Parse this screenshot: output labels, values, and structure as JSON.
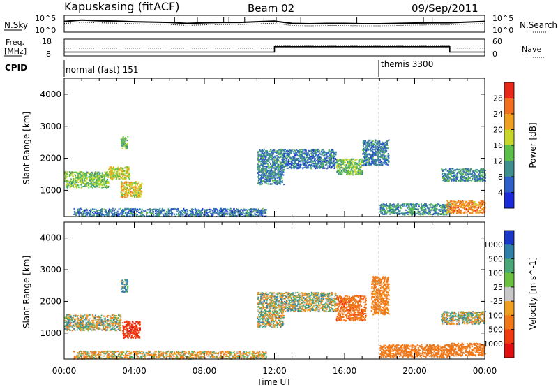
{
  "header": {
    "station": "Kapuskasing (fitACF)",
    "beam": "Beam 02",
    "date": "09/Sep/2011"
  },
  "noise_panel": {
    "left_label": "N.Sky",
    "right_label": "N.Search",
    "left_ticks": [
      "10^5",
      "10^0"
    ],
    "right_ticks": [
      "10^5",
      "10^0"
    ]
  },
  "freq_panel": {
    "left_label_line1": "Freq.",
    "left_label_line2": "[MHz]",
    "left_ticks": [
      "18",
      "8"
    ],
    "right_label": "Nave",
    "right_ticks": [
      "60",
      "0"
    ]
  },
  "cpid": {
    "label": "CPID",
    "segments": [
      {
        "name": "normal (fast) 151",
        "start_hour": 0
      },
      {
        "name": "themis 3300",
        "start_hour": 18
      }
    ]
  },
  "axes": {
    "xlabel": "Time UT",
    "x_ticks": [
      "00:00",
      "04:00",
      "08:00",
      "12:00",
      "16:00",
      "20:00",
      "00:00"
    ],
    "ylabel": "Slant Range [km]",
    "y_ticks": [
      "1000",
      "2000",
      "3000",
      "4000"
    ]
  },
  "power_colorbar": {
    "label": "Power [dB]",
    "ticks": [
      "4",
      "8",
      "12",
      "16",
      "20",
      "24",
      "28"
    ],
    "colors": [
      "#1a2ad8",
      "#2f5fc8",
      "#3f8f8f",
      "#5bbf4a",
      "#c8d62a",
      "#f0a020",
      "#f07020",
      "#e82818"
    ]
  },
  "velocity_colorbar": {
    "label": "Velocity [m s^-1]",
    "ticks": [
      "1000",
      "500",
      "100",
      "25",
      "-25",
      "-100",
      "-500",
      "-1000"
    ],
    "colors": [
      "#1a38c8",
      "#2f7fa8",
      "#4aa878",
      "#6cc040",
      "#c8c8c8",
      "#f0a020",
      "#f07818",
      "#f03a10",
      "#e01010"
    ]
  },
  "chart_data": [
    {
      "type": "line",
      "title": "N.Sky / N.Search",
      "x": [
        0,
        1,
        2,
        3,
        4,
        5,
        6,
        7,
        8,
        9,
        10,
        11,
        12,
        13,
        14,
        15,
        16,
        17,
        18,
        19,
        20,
        21,
        22,
        23,
        24
      ],
      "series": [
        {
          "name": "N.Sky",
          "values": [
            3.2,
            3.6,
            3.4,
            3.3,
            3.1,
            3.0,
            2.9,
            2.6,
            2.8,
            2.9,
            2.9,
            3.1,
            3.3,
            2.6,
            2.5,
            2.6,
            2.6,
            2.5,
            2.5,
            2.6,
            2.7,
            2.8,
            2.8,
            3.0,
            3.2
          ]
        }
      ],
      "ylim": [
        0,
        5
      ],
      "y_scale": "log10"
    },
    {
      "type": "line",
      "title": "Freq. / Nave",
      "x": [
        0,
        12,
        12,
        22,
        22,
        24
      ],
      "series": [
        {
          "name": "Freq.",
          "values": [
            10.3,
            10.3,
            13.5,
            13.5,
            10.3,
            10.3
          ]
        },
        {
          "name": "Nave",
          "values": [
            28,
            28,
            37,
            37,
            28,
            28
          ]
        }
      ],
      "ylim": [
        8,
        18
      ]
    },
    {
      "type": "heatmap",
      "title": "Power [dB]",
      "xlabel": "Time UT",
      "ylabel": "Slant Range [km]",
      "xlim": [
        0,
        24
      ],
      "ylim": [
        180,
        4500
      ],
      "clim": [
        0,
        30
      ],
      "regions": [
        {
          "t0": 0.0,
          "t1": 2.5,
          "r0": 1100,
          "r1": 1600,
          "power": 15
        },
        {
          "t0": 2.5,
          "t1": 3.7,
          "r0": 1350,
          "r1": 1750,
          "power": 18
        },
        {
          "t0": 3.2,
          "t1": 4.4,
          "r0": 800,
          "r1": 1300,
          "power": 20
        },
        {
          "t0": 3.2,
          "t1": 3.6,
          "r0": 2300,
          "r1": 2700,
          "power": 14
        },
        {
          "t0": 0.5,
          "t1": 11.5,
          "r0": 200,
          "r1": 450,
          "power": 8
        },
        {
          "t0": 11.0,
          "t1": 12.5,
          "r0": 1200,
          "r1": 2300,
          "power": 9
        },
        {
          "t0": 12.5,
          "t1": 15.5,
          "r0": 1700,
          "r1": 2300,
          "power": 8
        },
        {
          "t0": 15.5,
          "t1": 17.0,
          "r0": 1500,
          "r1": 2000,
          "power": 14
        },
        {
          "t0": 17.0,
          "t1": 18.5,
          "r0": 1800,
          "r1": 2600,
          "power": 8
        },
        {
          "t0": 18.0,
          "t1": 22.0,
          "r0": 250,
          "r1": 600,
          "power": 10
        },
        {
          "t0": 21.5,
          "t1": 24.0,
          "r0": 1300,
          "r1": 1700,
          "power": 10
        },
        {
          "t0": 21.8,
          "t1": 24.0,
          "r0": 300,
          "r1": 700,
          "power": 24
        }
      ]
    },
    {
      "type": "heatmap",
      "title": "Velocity [m s^-1]",
      "xlabel": "Time UT",
      "ylabel": "Slant Range [km]",
      "xlim": [
        0,
        24
      ],
      "ylim": [
        180,
        4500
      ],
      "clim": [
        -1000,
        1000
      ],
      "regions": [
        {
          "t0": 0.0,
          "t1": 3.2,
          "r0": 1100,
          "r1": 1600,
          "velocity": 0
        },
        {
          "t0": 3.3,
          "t1": 4.3,
          "r0": 850,
          "r1": 1400,
          "velocity": -800
        },
        {
          "t0": 3.2,
          "t1": 3.6,
          "r0": 2300,
          "r1": 2700,
          "velocity": 100
        },
        {
          "t0": 0.5,
          "t1": 11.5,
          "r0": 200,
          "r1": 450,
          "velocity": -60
        },
        {
          "t0": 11.0,
          "t1": 12.5,
          "r0": 1200,
          "r1": 2300,
          "velocity": 0
        },
        {
          "t0": 12.5,
          "t1": 15.5,
          "r0": 1700,
          "r1": 2300,
          "velocity": 0
        },
        {
          "t0": 15.5,
          "t1": 17.2,
          "r0": 1400,
          "r1": 2200,
          "velocity": -400
        },
        {
          "t0": 17.5,
          "t1": 18.5,
          "r0": 1600,
          "r1": 2800,
          "velocity": -200
        },
        {
          "t0": 18.0,
          "t1": 22.0,
          "r0": 250,
          "r1": 650,
          "velocity": -300
        },
        {
          "t0": 21.5,
          "t1": 24.0,
          "r0": 1300,
          "r1": 1700,
          "velocity": 0
        },
        {
          "t0": 21.8,
          "t1": 24.0,
          "r0": 300,
          "r1": 700,
          "velocity": -250
        }
      ]
    }
  ]
}
